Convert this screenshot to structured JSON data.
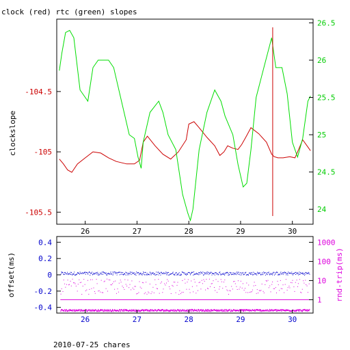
{
  "chart_data": [
    {
      "type": "line",
      "title": "clock (red) rtc (green) slopes",
      "ylabel": "clockslope",
      "y2label": "",
      "x_ticks": [
        "26",
        "27",
        "28",
        "29",
        "30"
      ],
      "x_tick_values": [
        26,
        27,
        28,
        29,
        30
      ],
      "xlim": [
        25.45,
        30.4
      ],
      "ylim": [
        -105.6,
        -103.9
      ],
      "y_ticks": [
        "-104.5",
        "-105",
        "-105.5"
      ],
      "y_tick_values": [
        -104.5,
        -105,
        -105.5
      ],
      "y2lim": [
        23.8,
        26.55
      ],
      "y2_ticks": [
        "26.5",
        "26",
        "25.5",
        "25",
        "24.5",
        "24"
      ],
      "y2_tick_values": [
        26.5,
        26,
        25.5,
        25,
        24.5,
        24
      ],
      "series": [
        {
          "axis": "left",
          "color": "#cc0000",
          "x": [
            25.5,
            25.58,
            25.66,
            25.74,
            25.85,
            26.0,
            26.15,
            26.3,
            26.45,
            26.6,
            26.8,
            26.95,
            27.05,
            27.12,
            27.2,
            27.35,
            27.5,
            27.65,
            27.8,
            27.95,
            28.0,
            28.1,
            28.2,
            28.35,
            28.5,
            28.6,
            28.68,
            28.75,
            28.85,
            28.95,
            29.02,
            29.1,
            29.2,
            29.35,
            29.5,
            29.6,
            29.65,
            29.72,
            29.82,
            29.95,
            30.05,
            30.15,
            30.2,
            30.3,
            30.35
          ],
          "y": [
            -105.06,
            -105.1,
            -105.15,
            -105.17,
            -105.1,
            -105.05,
            -105.0,
            -105.01,
            -105.05,
            -105.08,
            -105.1,
            -105.1,
            -105.07,
            -104.92,
            -104.87,
            -104.95,
            -105.02,
            -105.06,
            -105.0,
            -104.9,
            -104.77,
            -104.75,
            -104.8,
            -104.88,
            -104.95,
            -105.03,
            -105.0,
            -104.95,
            -104.97,
            -104.98,
            -104.94,
            -104.88,
            -104.8,
            -104.85,
            -104.92,
            -105.02,
            -105.04,
            -105.05,
            -105.05,
            -105.04,
            -105.05,
            -104.95,
            -104.9,
            -104.96,
            -104.99
          ]
        },
        {
          "axis": "right",
          "color": "#00dd00",
          "x": [
            25.5,
            25.55,
            25.62,
            25.7,
            25.78,
            25.9,
            26.05,
            26.15,
            26.25,
            26.45,
            26.55,
            26.7,
            26.85,
            26.95,
            27.02,
            27.08,
            27.12,
            27.25,
            27.42,
            27.5,
            27.6,
            27.75,
            27.88,
            27.98,
            28.03,
            28.08,
            28.2,
            28.35,
            28.5,
            28.62,
            28.7,
            28.85,
            28.95,
            29.05,
            29.12,
            29.2,
            29.3,
            29.45,
            29.6,
            29.68,
            29.8,
            29.9,
            30.0,
            30.1,
            30.2,
            30.3,
            30.35
          ],
          "y": [
            25.86,
            26.1,
            26.37,
            26.4,
            26.3,
            25.6,
            25.45,
            25.9,
            26.0,
            26.0,
            25.9,
            25.45,
            25.0,
            24.95,
            24.7,
            24.55,
            24.9,
            25.3,
            25.45,
            25.3,
            25.0,
            24.8,
            24.2,
            23.95,
            23.85,
            24.0,
            24.8,
            25.3,
            25.6,
            25.45,
            25.25,
            25.0,
            24.6,
            24.3,
            24.35,
            24.8,
            25.5,
            25.9,
            26.3,
            25.9,
            25.9,
            25.55,
            24.9,
            24.7,
            24.95,
            25.45,
            25.52
          ]
        }
      ],
      "annotations": [
        {
          "type": "vline",
          "x": 29.62,
          "color": "#cc0000"
        }
      ]
    },
    {
      "type": "scatter",
      "ylabel": "offset(ms)",
      "y2label": "rnd-trip(ms)",
      "x_ticks": [
        "26",
        "27",
        "28",
        "29",
        "30"
      ],
      "x_tick_values": [
        26,
        27,
        28,
        29,
        30
      ],
      "xlim": [
        25.45,
        30.4
      ],
      "ylim": [
        -0.47,
        0.47
      ],
      "y_ticks": [
        "0.4",
        "0.2",
        "0",
        "-0.2",
        "-0.4"
      ],
      "y_tick_values": [
        0.4,
        0.2,
        0,
        -0.2,
        -0.4
      ],
      "y2_log": true,
      "y2lim": [
        0.2,
        2000
      ],
      "y2_ticks": [
        "1000",
        "100",
        "10",
        "1"
      ],
      "y2_tick_values": [
        1000,
        100,
        10,
        1
      ],
      "series": [
        {
          "axis": "left",
          "color": "#0000cc",
          "level": 0.02,
          "spread": 0.02
        },
        {
          "axis": "right",
          "color": "#dd00dd",
          "level": 0.3,
          "spread": 0.03
        },
        {
          "axis": "right",
          "color": "#dd00dd",
          "level": 5,
          "spread": 2.0
        },
        {
          "axis": "right",
          "color": "#dd00dd",
          "level": 1.0,
          "spread": 0.0
        }
      ]
    }
  ],
  "footer": "2010-07-25 chares"
}
